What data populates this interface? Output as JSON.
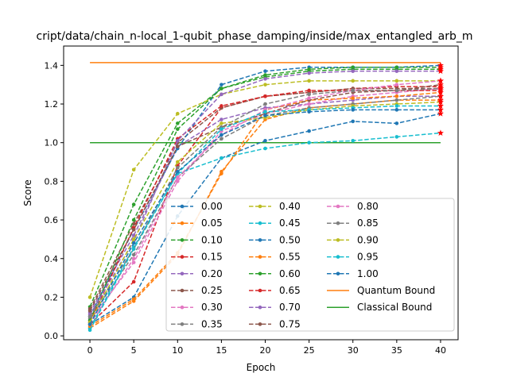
{
  "chart_data": {
    "type": "line",
    "title": "cript/data/chain_n-local_1-qubit_phase_damping/inside/max_entangled_arb_m",
    "xlabel": "Epoch",
    "ylabel": "Score",
    "xlim": [
      -3,
      42
    ],
    "ylim": [
      -0.02,
      1.5
    ],
    "x_ticks": [
      0,
      5,
      10,
      15,
      20,
      25,
      30,
      35,
      40
    ],
    "y_ticks": [
      0.0,
      0.2,
      0.4,
      0.6,
      0.8,
      1.0,
      1.2,
      1.4
    ],
    "x": [
      0,
      5,
      10,
      15,
      20,
      25,
      30,
      35,
      40
    ],
    "grid": false,
    "legend_position": "lower-right",
    "legend_columns": 3,
    "series": [
      {
        "name": "0.00",
        "color": "#1f77b4",
        "values": [
          0.06,
          0.2,
          0.62,
          0.92,
          1.01,
          1.06,
          1.11,
          1.1,
          1.15
        ]
      },
      {
        "name": "0.05",
        "color": "#ff7f0e",
        "values": [
          0.04,
          0.18,
          0.42,
          0.85,
          1.12,
          1.18,
          1.2,
          1.22,
          1.22
        ]
      },
      {
        "name": "0.10",
        "color": "#2ca02c",
        "values": [
          0.15,
          0.68,
          1.1,
          1.28,
          1.34,
          1.37,
          1.38,
          1.38,
          1.38
        ]
      },
      {
        "name": "0.15",
        "color": "#d62728",
        "values": [
          0.06,
          0.28,
          0.88,
          1.18,
          1.24,
          1.26,
          1.28,
          1.29,
          1.29
        ]
      },
      {
        "name": "0.20",
        "color": "#9467bd",
        "values": [
          0.12,
          0.52,
          0.98,
          1.12,
          1.18,
          1.2,
          1.22,
          1.24,
          1.24
        ]
      },
      {
        "name": "0.25",
        "color": "#8c564b",
        "values": [
          0.14,
          0.58,
          1.0,
          1.18,
          1.24,
          1.26,
          1.28,
          1.28,
          1.28
        ]
      },
      {
        "name": "0.30",
        "color": "#e377c2",
        "values": [
          0.08,
          0.38,
          0.8,
          1.06,
          1.15,
          1.2,
          1.24,
          1.26,
          1.28
        ]
      },
      {
        "name": "0.35",
        "color": "#7f7f7f",
        "values": [
          0.09,
          0.42,
          0.82,
          1.02,
          1.14,
          1.18,
          1.2,
          1.22,
          1.24
        ]
      },
      {
        "name": "0.40",
        "color": "#bcbd22",
        "values": [
          0.2,
          0.86,
          1.15,
          1.25,
          1.3,
          1.32,
          1.32,
          1.32,
          1.32
        ]
      },
      {
        "name": "0.45",
        "color": "#17becf",
        "values": [
          0.04,
          0.46,
          0.84,
          0.92,
          0.97,
          1.0,
          1.01,
          1.03,
          1.05
        ]
      },
      {
        "name": "0.50",
        "color": "#1f77b4",
        "values": [
          0.1,
          0.55,
          0.97,
          1.3,
          1.37,
          1.39,
          1.39,
          1.39,
          1.4
        ]
      },
      {
        "name": "0.55",
        "color": "#ff7f0e",
        "values": [
          0.05,
          0.19,
          0.43,
          0.84,
          1.17,
          1.22,
          1.23,
          1.24,
          1.26
        ]
      },
      {
        "name": "0.60",
        "color": "#2ca02c",
        "values": [
          0.08,
          0.6,
          1.07,
          1.28,
          1.35,
          1.38,
          1.39,
          1.39,
          1.39
        ]
      },
      {
        "name": "0.65",
        "color": "#d62728",
        "values": [
          0.07,
          0.56,
          1.02,
          1.19,
          1.24,
          1.27,
          1.27,
          1.27,
          1.27
        ]
      },
      {
        "name": "0.70",
        "color": "#9467bd",
        "values": [
          0.11,
          0.49,
          1.01,
          1.25,
          1.33,
          1.36,
          1.37,
          1.37,
          1.37
        ]
      },
      {
        "name": "0.75",
        "color": "#8c564b",
        "values": [
          0.13,
          0.55,
          0.98,
          1.08,
          1.15,
          1.22,
          1.26,
          1.27,
          1.3
        ]
      },
      {
        "name": "0.80",
        "color": "#e377c2",
        "values": [
          0.06,
          0.4,
          0.82,
          1.04,
          1.17,
          1.23,
          1.27,
          1.3,
          1.32
        ]
      },
      {
        "name": "0.85",
        "color": "#7f7f7f",
        "values": [
          0.1,
          0.45,
          0.87,
          1.08,
          1.2,
          1.25,
          1.27,
          1.27,
          1.28
        ]
      },
      {
        "name": "0.90",
        "color": "#bcbd22",
        "values": [
          0.07,
          0.5,
          0.9,
          1.1,
          1.13,
          1.17,
          1.19,
          1.2,
          1.21
        ]
      },
      {
        "name": "0.95",
        "color": "#17becf",
        "values": [
          0.03,
          0.45,
          0.84,
          1.07,
          1.16,
          1.17,
          1.18,
          1.19,
          1.19
        ]
      },
      {
        "name": "1.00",
        "color": "#1f77b4",
        "values": [
          0.06,
          0.48,
          0.85,
          1.04,
          1.14,
          1.16,
          1.17,
          1.17,
          1.17
        ]
      }
    ],
    "bounds": [
      {
        "name": "Quantum Bound",
        "color": "#ff7f0e",
        "value": 1.414
      },
      {
        "name": "Classical Bound",
        "color": "#2ca02c",
        "value": 1.0
      }
    ]
  }
}
